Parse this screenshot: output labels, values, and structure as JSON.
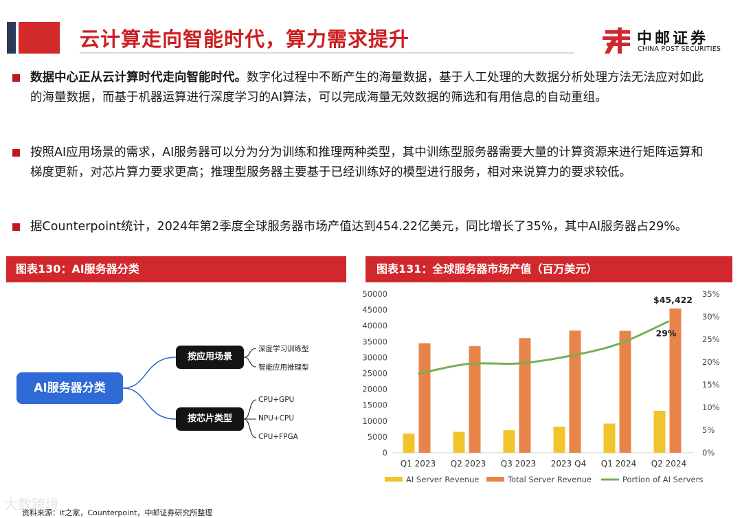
{
  "header": {
    "title": "云计算走向智能时代，算力需求提升",
    "brand_cn": "中邮证券",
    "brand_en": "CHINA POST SECURITIES"
  },
  "bullets": [
    {
      "bold": "数据中心正从云计算时代走向智能时代。",
      "text": "数字化过程中不断产生的海量数据，基于人工处理的大数据分析处理方法无法应对如此的海量数据，而基于机器运算进行深度学习的AI算法，可以完成海量无效数据的筛选和有用信息的自动重组。"
    },
    {
      "bold": "",
      "text": "按照AI应用场景的需求，AI服务器可以分为分为训练和推理两种类型，其中训练型服务器需要大量的计算资源来进行矩阵运算和梯度更新，对芯片算力要求更高；推理型服务器主要基于已经训练好的模型进行服务，相对来说算力的要求较低。"
    },
    {
      "bold": "",
      "text": "据Counterpoint统计，2024年第2季度全球服务器市场产值达到454.22亿美元，同比增长了35%，其中AI服务器占29%。"
    }
  ],
  "figure130": {
    "title": "图表130：AI服务器分类",
    "root": "AI服务器分类",
    "branches": [
      {
        "label": "按应用场景",
        "leaves": [
          "深度学习训练型",
          "智能应用推理型"
        ]
      },
      {
        "label": "按芯片类型",
        "leaves": [
          "CPU+GPU",
          "NPU+CPU",
          "CPU+FPGA"
        ]
      }
    ]
  },
  "figure131": {
    "title": "图表131：全球服务器市场产值（百万美元）"
  },
  "chart_data": {
    "type": "bar",
    "categories": [
      "Q1 2023",
      "Q2 2023",
      "Q3 2023",
      "2023 Q4",
      "Q1 2024",
      "Q2 2024"
    ],
    "series": [
      {
        "name": "AI Server Revenue",
        "type": "bar",
        "axis": "left",
        "color": "#f2c42c",
        "values": [
          6000,
          6600,
          7100,
          8200,
          9200,
          13200
        ]
      },
      {
        "name": "Total Server Revenue",
        "type": "bar",
        "axis": "left",
        "color": "#e8844a",
        "values": [
          34500,
          33600,
          36100,
          38500,
          38400,
          45422
        ]
      },
      {
        "name": "Portion of AI Servers",
        "type": "line",
        "axis": "right",
        "color": "#74b153",
        "values": [
          17.4,
          19.6,
          19.7,
          21.3,
          24.0,
          29.0
        ]
      }
    ],
    "yleft": {
      "min": 0,
      "max": 50000,
      "step": 5000,
      "ticks": [
        "0",
        "5000",
        "10000",
        "15000",
        "20000",
        "25000",
        "30000",
        "35000",
        "40000",
        "45000",
        "50000"
      ]
    },
    "yright": {
      "min": 0,
      "max": 35,
      "step": 5,
      "ticks": [
        "0%",
        "5%",
        "10%",
        "15%",
        "20%",
        "25%",
        "30%",
        "35%"
      ]
    },
    "grid": false,
    "legend": "bottom",
    "annotations": [
      {
        "text": "$45,422",
        "category": "Q2 2024",
        "series": "Total Server Revenue"
      },
      {
        "text": "29%",
        "category": "Q2 2024",
        "series": "Portion of AI Servers"
      }
    ]
  },
  "source": "资料来源：it之家，Counterpoint，中邮证券研究所整理",
  "watermark": "大数跨境"
}
